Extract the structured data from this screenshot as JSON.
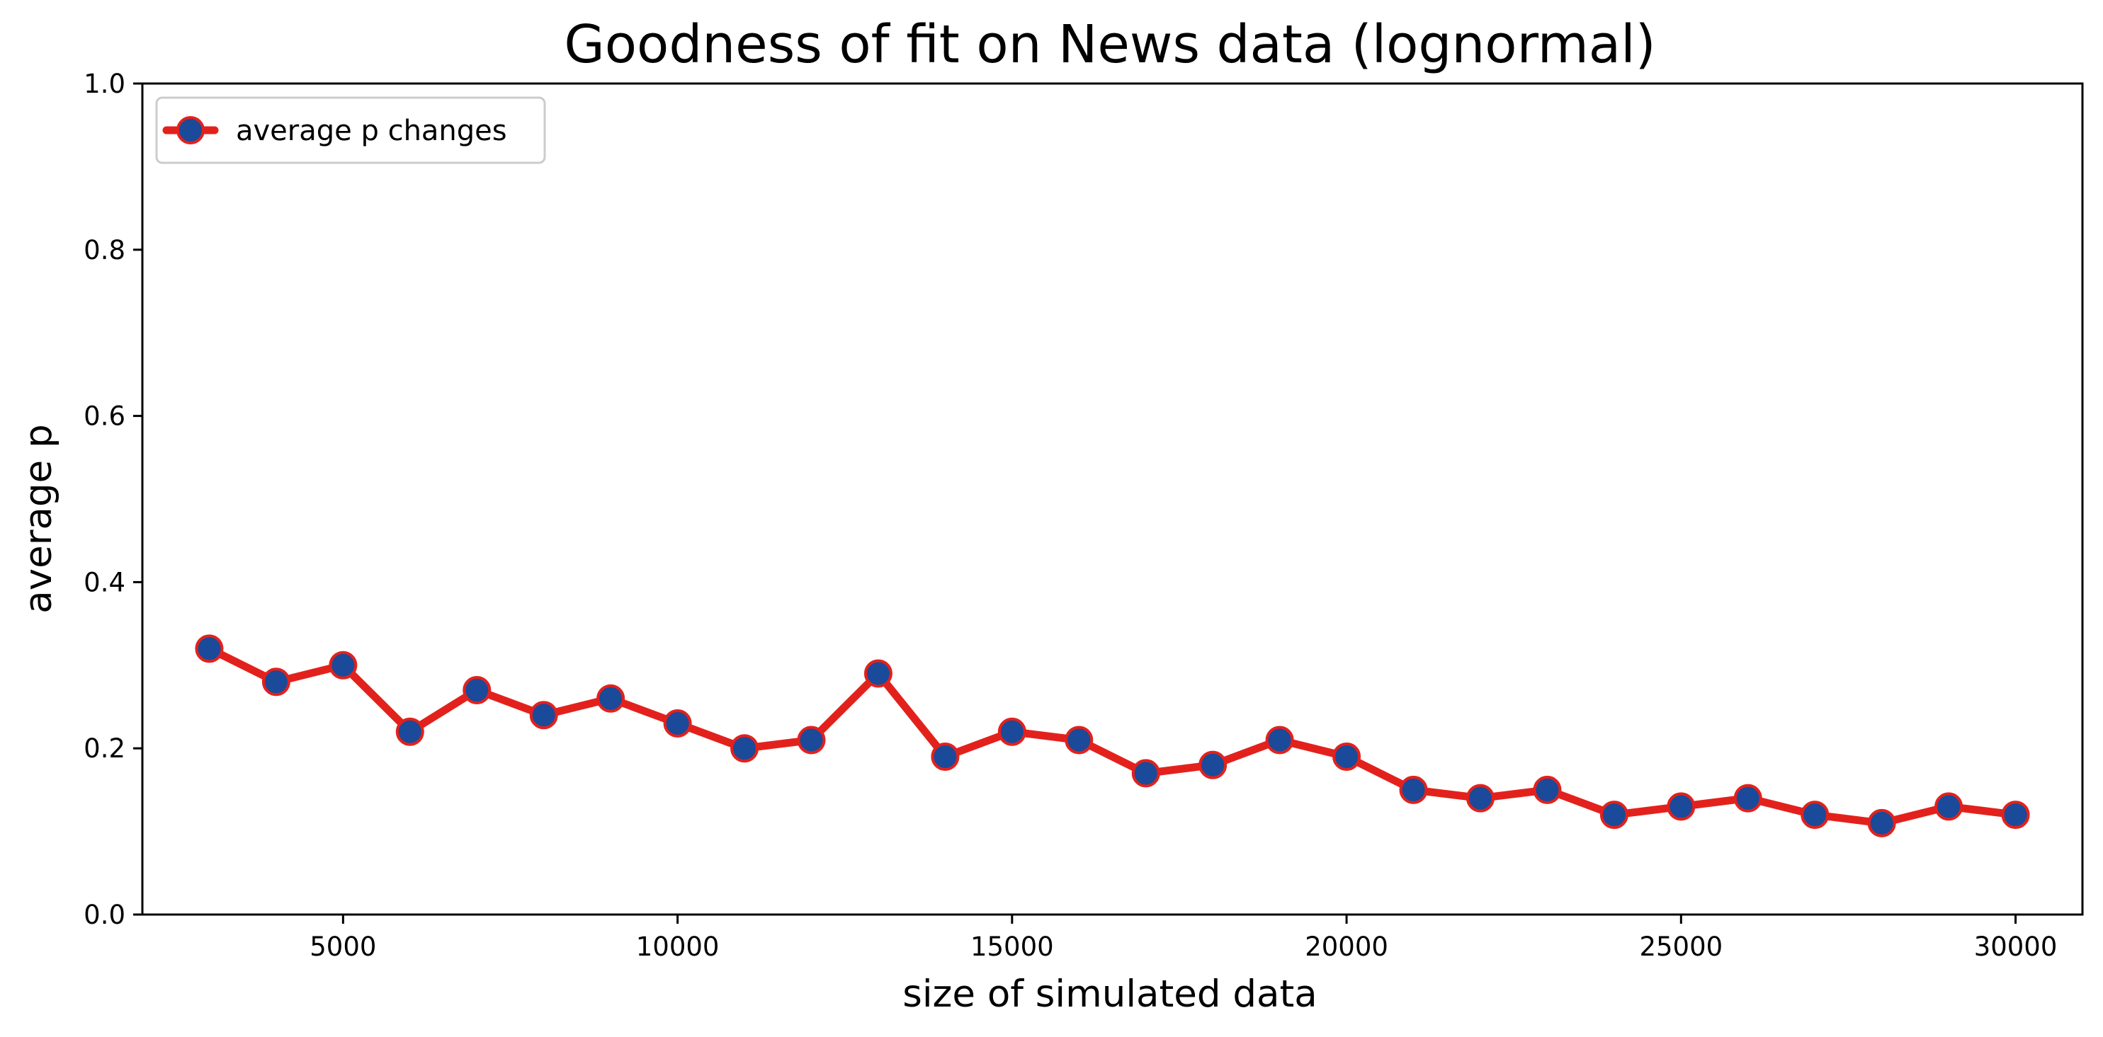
{
  "chart_data": {
    "type": "line",
    "title": "Goodness of fit on News data (lognormal)",
    "xlabel": "size of simulated data",
    "ylabel": "average p",
    "xlim": [
      2000,
      31000
    ],
    "ylim": [
      0.0,
      1.0
    ],
    "xticks": [
      5000,
      10000,
      15000,
      20000,
      25000,
      30000
    ],
    "yticks": [
      0.0,
      0.2,
      0.4,
      0.6,
      0.8,
      1.0
    ],
    "xtick_labels": [
      "5000",
      "10000",
      "15000",
      "20000",
      "25000",
      "30000"
    ],
    "ytick_labels": [
      "0.0",
      "0.2",
      "0.4",
      "0.6",
      "0.8",
      "1.0"
    ],
    "grid": false,
    "legend": {
      "placement": "top-left",
      "entries": [
        "average p changes"
      ]
    },
    "series": [
      {
        "name": "average p changes",
        "line_color": "#e3211c",
        "marker_color": "#1a4a99",
        "x": [
          3000,
          4000,
          5000,
          6000,
          7000,
          8000,
          9000,
          10000,
          11000,
          12000,
          13000,
          14000,
          15000,
          16000,
          17000,
          18000,
          19000,
          20000,
          21000,
          22000,
          23000,
          24000,
          25000,
          26000,
          27000,
          28000,
          29000,
          30000
        ],
        "y": [
          0.32,
          0.28,
          0.3,
          0.22,
          0.27,
          0.24,
          0.26,
          0.23,
          0.2,
          0.21,
          0.29,
          0.19,
          0.22,
          0.21,
          0.17,
          0.18,
          0.21,
          0.19,
          0.15,
          0.14,
          0.15,
          0.12,
          0.13,
          0.14,
          0.12,
          0.11,
          0.13,
          0.12
        ]
      }
    ]
  }
}
